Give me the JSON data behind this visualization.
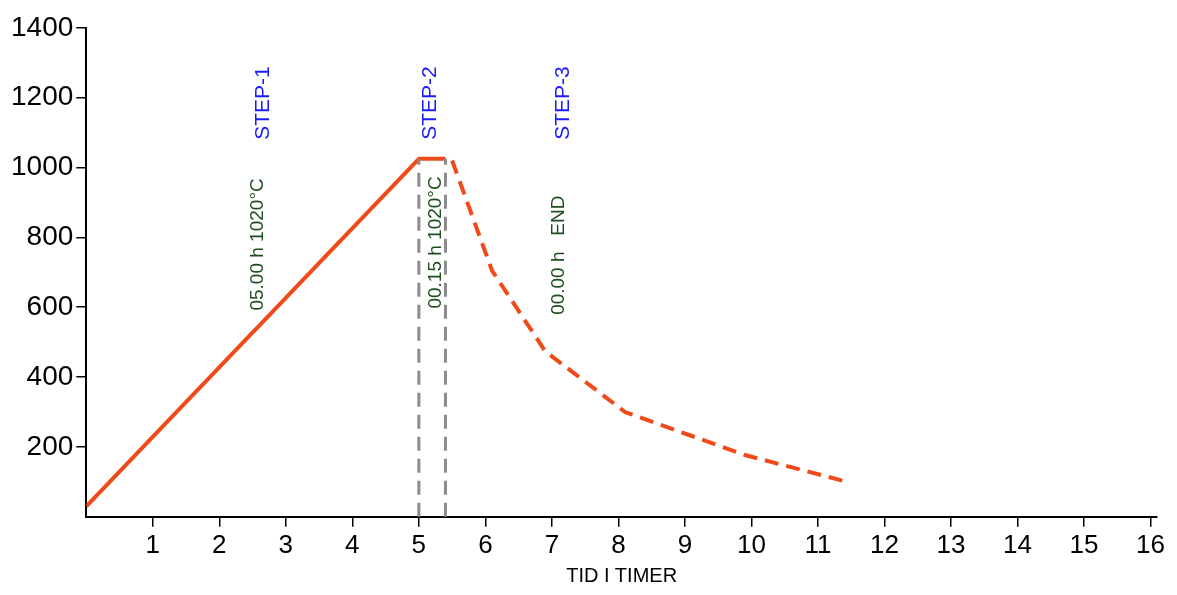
{
  "chart_data": {
    "type": "line",
    "xlabel": "TID I TIMER",
    "xlim": [
      0,
      16.1
    ],
    "xticks": [
      1,
      2,
      3,
      4,
      5,
      6,
      7,
      8,
      9,
      10,
      11,
      12,
      13,
      14,
      15,
      16
    ],
    "ylim": [
      0,
      1400
    ],
    "yticks": [
      200,
      400,
      600,
      800,
      1000,
      1200,
      1400
    ],
    "grid": false,
    "legend": false,
    "marker": "none",
    "series": [
      {
        "color": "#f04a1a",
        "line_style": "solid",
        "x": [
          0,
          5,
          5.4
        ],
        "values": [
          30,
          1025,
          1025
        ]
      },
      {
        "color": "#f04a1a",
        "line_style": "dashed",
        "x": [
          5.5,
          6.1,
          6.9,
          8.1,
          9.9,
          11.4
        ],
        "values": [
          1020,
          705,
          474,
          300,
          177,
          102
        ]
      }
    ],
    "ref_lines": [
      {
        "axis": "x",
        "value": 5,
        "color": "#8c8c8c",
        "line_style": "dashed"
      },
      {
        "axis": "x",
        "value": 5.4,
        "color": "#8c8c8c",
        "line_style": "dashed"
      }
    ],
    "annotations": [
      "STEP-1",
      "05.00 h 1020°C",
      "STEP-2",
      "00.15 h 1020°C",
      "STEP-3",
      "00.00 h   END"
    ]
  }
}
